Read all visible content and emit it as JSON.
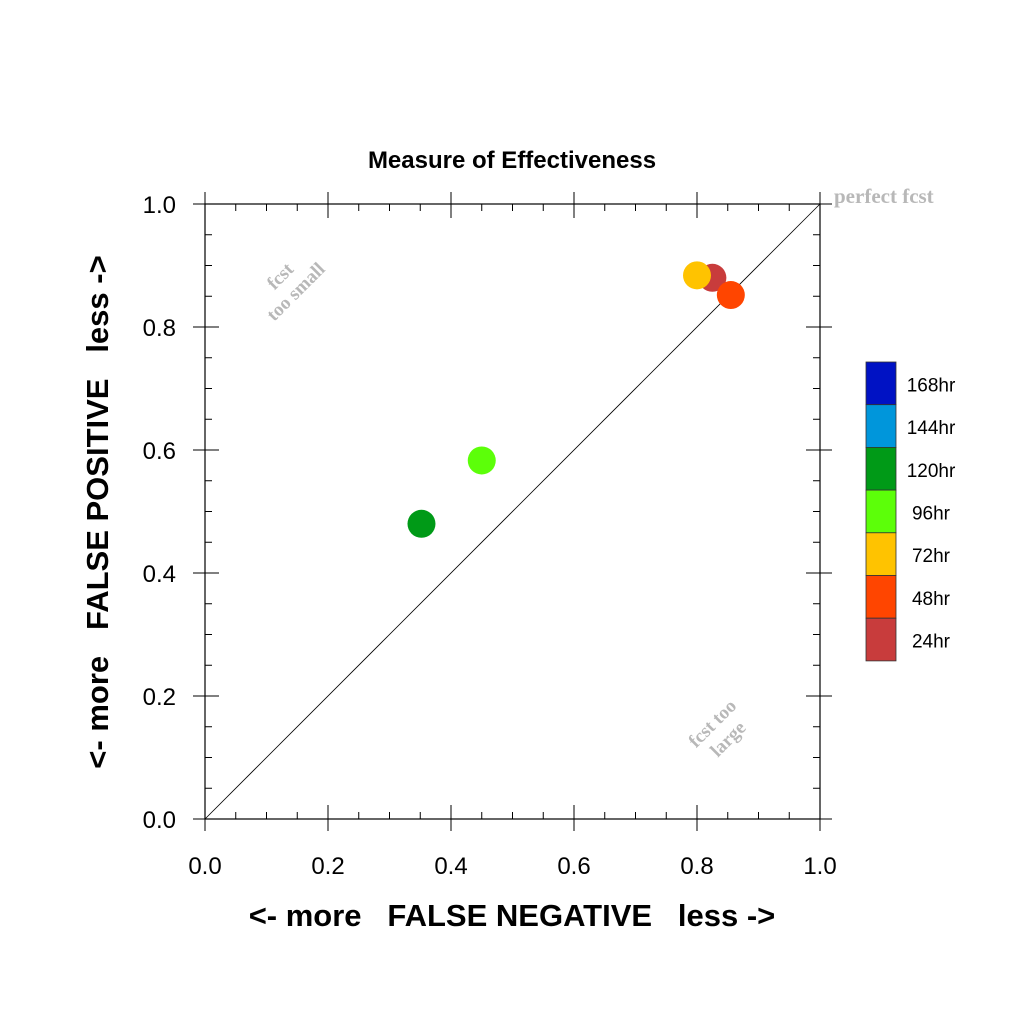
{
  "chart_data": {
    "type": "scatter",
    "title": "Measure of Effectiveness",
    "xlabel": "<- more   FALSE NEGATIVE   less ->",
    "ylabel": "<- more   FALSE POSITIVE   less ->",
    "xlim": [
      0.0,
      1.0
    ],
    "ylim": [
      0.0,
      1.0
    ],
    "xticks": [
      "0.0",
      "0.2",
      "0.4",
      "0.6",
      "0.8",
      "1.0"
    ],
    "yticks": [
      "0.0",
      "0.2",
      "0.4",
      "0.6",
      "0.8",
      "1.0"
    ],
    "grid": false,
    "diagonal_line": true,
    "annotations": {
      "perfect": "perfect fcst",
      "small_line1": "fcst",
      "small_line2": "too small",
      "large_line1": "fcst too",
      "large_line2": "large"
    },
    "legend": {
      "position": "right",
      "entries": [
        {
          "label": "168hr",
          "color": "#0012c4"
        },
        {
          "label": "144hr",
          "color": "#0096db"
        },
        {
          "label": "120hr",
          "color": "#009a17"
        },
        {
          "label": "96hr",
          "color": "#5cff09"
        },
        {
          "label": "72hr",
          "color": "#ffc300"
        },
        {
          "label": "48hr",
          "color": "#ff4500"
        },
        {
          "label": "24hr",
          "color": "#c83c3c"
        }
      ]
    },
    "points": [
      {
        "series": "24hr",
        "x": 0.825,
        "y": 0.88,
        "color": "#c83c3c"
      },
      {
        "series": "72hr",
        "x": 0.8,
        "y": 0.884,
        "color": "#ffc300"
      },
      {
        "series": "48hr",
        "x": 0.855,
        "y": 0.852,
        "color": "#ff4500"
      },
      {
        "series": "96hr",
        "x": 0.45,
        "y": 0.583,
        "color": "#5cff09"
      },
      {
        "series": "120hr",
        "x": 0.352,
        "y": 0.48,
        "color": "#009a17"
      }
    ]
  }
}
